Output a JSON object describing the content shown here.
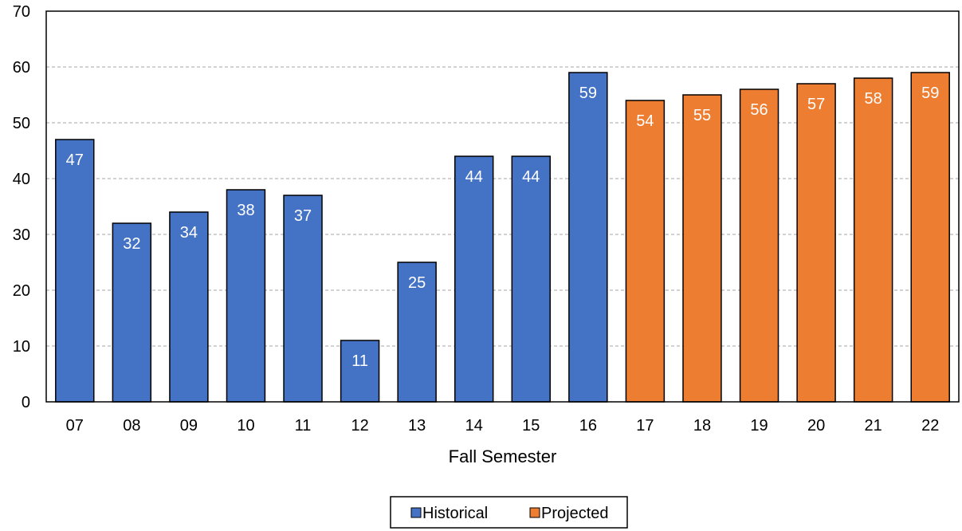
{
  "chart_data": {
    "type": "bar",
    "categories": [
      "07",
      "08",
      "09",
      "10",
      "11",
      "12",
      "13",
      "14",
      "15",
      "16",
      "17",
      "18",
      "19",
      "20",
      "21",
      "22"
    ],
    "values": [
      47,
      32,
      34,
      38,
      37,
      11,
      25,
      44,
      44,
      59,
      54,
      55,
      56,
      57,
      58,
      59
    ],
    "groups": [
      "Historical",
      "Historical",
      "Historical",
      "Historical",
      "Historical",
      "Historical",
      "Historical",
      "Historical",
      "Historical",
      "Historical",
      "Projected",
      "Projected",
      "Projected",
      "Projected",
      "Projected",
      "Projected"
    ],
    "legend": [
      {
        "name": "Historical",
        "color": "#4472C4"
      },
      {
        "name": "Projected",
        "color": "#ED7D31"
      }
    ],
    "title": "",
    "xlabel": "Fall Semester",
    "ylabel": "",
    "ylim": [
      0,
      70
    ],
    "yticks": [
      0,
      10,
      20,
      30,
      40,
      50,
      60,
      70
    ],
    "grid": true,
    "legend_position": "bottom"
  }
}
